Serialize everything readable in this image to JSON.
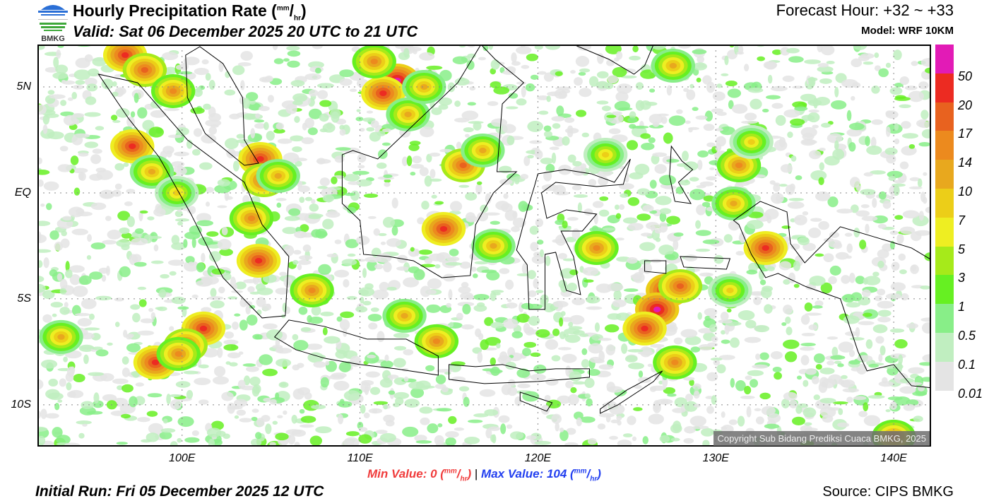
{
  "header": {
    "logo_text": "BMKG",
    "title": "Hourly Precipitation Rate (",
    "title_unit_top": "mm",
    "title_unit_bottom": "hr",
    "title_close": ")",
    "valid": "Valid: Sat 06 December 2025 20 UTC to 21 UTC",
    "forecast_hour": "Forecast Hour: +32 ~ +33",
    "model": "Model: WRF 10KM"
  },
  "map": {
    "extent": {
      "lon": [
        91.87,
        142.1
      ],
      "lat": [
        -11.97,
        7.0
      ]
    },
    "lat_ticks": [
      {
        "label": "5N",
        "lat": 5
      },
      {
        "label": "EQ",
        "lat": 0
      },
      {
        "label": "5S",
        "lat": -5
      },
      {
        "label": "10S",
        "lat": -10
      }
    ],
    "lon_ticks": [
      {
        "label": "100E",
        "lon": 100
      },
      {
        "label": "110E",
        "lon": 110
      },
      {
        "label": "120E",
        "lon": 120
      },
      {
        "label": "130E",
        "lon": 130
      },
      {
        "label": "140E",
        "lon": 140
      }
    ],
    "copyright": "Copyright Sub Bidang Prediksi Cuaca BMKG, 2025",
    "rain_cells": [
      {
        "lon": 96.8,
        "lat": 6.5,
        "v": 20
      },
      {
        "lon": 97.9,
        "lat": 5.8,
        "v": 17
      },
      {
        "lon": 99.5,
        "lat": 4.8,
        "v": 14
      },
      {
        "lon": 97.2,
        "lat": 2.2,
        "v": 20
      },
      {
        "lon": 98.3,
        "lat": 1.0,
        "v": 10
      },
      {
        "lon": 99.7,
        "lat": 0.0,
        "v": 7
      },
      {
        "lon": 104.4,
        "lat": 1.6,
        "v": 20
      },
      {
        "lon": 104.6,
        "lat": 0.6,
        "v": 17
      },
      {
        "lon": 105.4,
        "lat": 0.8,
        "v": 10
      },
      {
        "lon": 103.9,
        "lat": -1.2,
        "v": 14
      },
      {
        "lon": 104.3,
        "lat": -3.2,
        "v": 20
      },
      {
        "lon": 107.3,
        "lat": -4.6,
        "v": 14
      },
      {
        "lon": 112.1,
        "lat": 5.3,
        "v": 50
      },
      {
        "lon": 111.3,
        "lat": 4.7,
        "v": 20
      },
      {
        "lon": 112.7,
        "lat": 3.7,
        "v": 10
      },
      {
        "lon": 110.8,
        "lat": 6.2,
        "v": 14
      },
      {
        "lon": 113.6,
        "lat": 5.0,
        "v": 10
      },
      {
        "lon": 115.8,
        "lat": 1.3,
        "v": 17
      },
      {
        "lon": 116.9,
        "lat": 2.0,
        "v": 10
      },
      {
        "lon": 114.7,
        "lat": -1.7,
        "v": 20
      },
      {
        "lon": 117.5,
        "lat": -2.5,
        "v": 10
      },
      {
        "lon": 101.2,
        "lat": -6.4,
        "v": 20
      },
      {
        "lon": 100.2,
        "lat": -7.2,
        "v": 17
      },
      {
        "lon": 98.5,
        "lat": -8.0,
        "v": 20
      },
      {
        "lon": 99.8,
        "lat": -7.6,
        "v": 14
      },
      {
        "lon": 93.2,
        "lat": -6.8,
        "v": 10
      },
      {
        "lon": 114.3,
        "lat": -7.0,
        "v": 14
      },
      {
        "lon": 112.5,
        "lat": -5.8,
        "v": 10
      },
      {
        "lon": 127.3,
        "lat": -4.6,
        "v": 50
      },
      {
        "lon": 126.7,
        "lat": -5.5,
        "v": 50
      },
      {
        "lon": 126.0,
        "lat": -6.4,
        "v": 20
      },
      {
        "lon": 128.0,
        "lat": -4.4,
        "v": 17
      },
      {
        "lon": 127.7,
        "lat": -8.0,
        "v": 14
      },
      {
        "lon": 123.3,
        "lat": -2.6,
        "v": 14
      },
      {
        "lon": 132.8,
        "lat": -2.6,
        "v": 20
      },
      {
        "lon": 131.3,
        "lat": 1.3,
        "v": 14
      },
      {
        "lon": 131.0,
        "lat": -0.5,
        "v": 10
      },
      {
        "lon": 132.0,
        "lat": 2.4,
        "v": 7
      },
      {
        "lon": 127.6,
        "lat": 6.0,
        "v": 10
      },
      {
        "lon": 140.0,
        "lat": -11.5,
        "v": 14
      },
      {
        "lon": 130.8,
        "lat": -4.6,
        "v": 7
      },
      {
        "lon": 123.8,
        "lat": 1.8,
        "v": 7
      }
    ]
  },
  "colorbar": {
    "colors": [
      "#e21bb6",
      "#ec2b22",
      "#e8621f",
      "#ec8a1e",
      "#e8a81e",
      "#ecce18",
      "#eeee22",
      "#a6ea1a",
      "#66f022",
      "#88ee88",
      "#c0eec0",
      "#e4e4e4"
    ],
    "labels": [
      "50",
      "20",
      "17",
      "14",
      "10",
      "7",
      "5",
      "3",
      "1",
      "0.5",
      "0.1",
      "0.01"
    ]
  },
  "footer": {
    "min_label": "Min Value:   0 (",
    "min_value": 0,
    "max_label": "Max Value: 104 (",
    "max_value": 104,
    "unit_top": "mm",
    "unit_bottom": "hr",
    "unit_close": ")",
    "separator": "|",
    "initial_run": "Initial Run: Fri 05 December 2025 12 UTC",
    "source": "Source: CIPS BMKG"
  }
}
